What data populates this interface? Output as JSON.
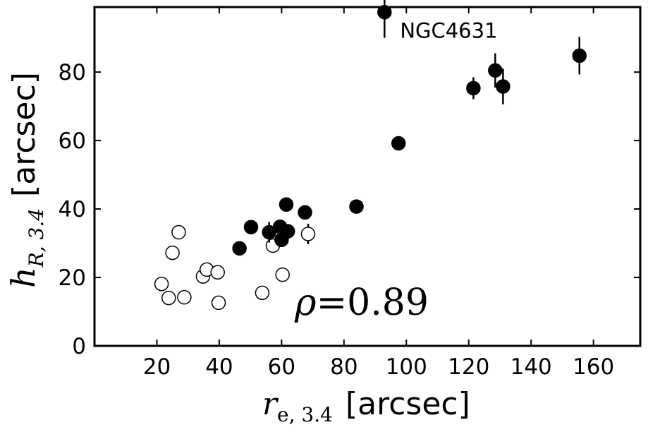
{
  "chart_data": {
    "type": "scatter",
    "xlabel": {
      "symbol": "r",
      "subscript": "e, 3.4",
      "unit": "[arcsec]"
    },
    "ylabel": {
      "symbol": "h",
      "subscript": "R, 3.4",
      "unit": "[arcsec]"
    },
    "xlim": [
      0,
      175
    ],
    "ylim": [
      0,
      99
    ],
    "x_ticks": [
      20,
      40,
      60,
      80,
      100,
      120,
      140,
      160
    ],
    "y_ticks": [
      0,
      20,
      40,
      60,
      80
    ],
    "grid": false,
    "annotation": {
      "text": "NGC4631",
      "x": 93,
      "y": 97.5
    },
    "correlation": {
      "symbol": "ρ",
      "text": "=0.89"
    },
    "series": [
      {
        "style": "filled",
        "points": [
          {
            "x": 46.5,
            "y": 28.5,
            "yerr": 0.8
          },
          {
            "x": 50.2,
            "y": 34.7,
            "yerr": 1.2
          },
          {
            "x": 56.0,
            "y": 33.2,
            "yerr": 3.0
          },
          {
            "x": 59.5,
            "y": 34.8,
            "yerr": 1.5
          },
          {
            "x": 60.0,
            "y": 31.0,
            "yerr": 1.5
          },
          {
            "x": 61.5,
            "y": 41.3,
            "yerr": 1.5
          },
          {
            "x": 62.0,
            "y": 33.5,
            "yerr": 1.5
          },
          {
            "x": 67.5,
            "y": 39.0,
            "yerr": 1.5
          },
          {
            "x": 84.0,
            "y": 40.7,
            "yerr": 0.8
          },
          {
            "x": 93.0,
            "y": 97.5,
            "yerr": 7.5
          },
          {
            "x": 97.5,
            "y": 59.2,
            "yerr": 1.2
          },
          {
            "x": 121.5,
            "y": 75.3,
            "yerr": 3.2
          },
          {
            "x": 128.5,
            "y": 80.5,
            "yerr": 5.0
          },
          {
            "x": 131.0,
            "y": 75.8,
            "yerr": 5.2
          },
          {
            "x": 155.5,
            "y": 84.8,
            "yerr": 5.5
          }
        ]
      },
      {
        "style": "open",
        "points": [
          {
            "x": 21.5,
            "y": 18.1,
            "yerr": 0
          },
          {
            "x": 23.8,
            "y": 14.0,
            "yerr": 0
          },
          {
            "x": 25.0,
            "y": 27.2,
            "yerr": 2.0
          },
          {
            "x": 27.0,
            "y": 33.2,
            "yerr": 0
          },
          {
            "x": 28.8,
            "y": 14.2,
            "yerr": 0
          },
          {
            "x": 34.8,
            "y": 20.3,
            "yerr": 0
          },
          {
            "x": 36.0,
            "y": 22.3,
            "yerr": 0
          },
          {
            "x": 39.5,
            "y": 21.5,
            "yerr": 0
          },
          {
            "x": 39.8,
            "y": 12.6,
            "yerr": 0
          },
          {
            "x": 53.8,
            "y": 15.5,
            "yerr": 0
          },
          {
            "x": 57.2,
            "y": 29.3,
            "yerr": 0
          },
          {
            "x": 60.3,
            "y": 20.8,
            "yerr": 0
          },
          {
            "x": 68.5,
            "y": 32.7,
            "yerr": 3.0
          }
        ]
      }
    ]
  }
}
